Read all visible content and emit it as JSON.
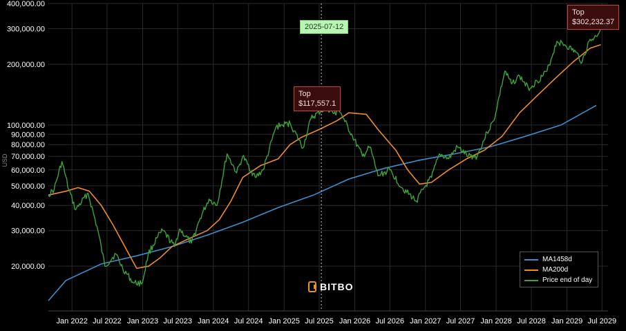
{
  "chart_data": {
    "type": "line",
    "ylabel": "USD",
    "y_scale": "log",
    "ylim": [
      12000,
      400000
    ],
    "xlim": [
      "2021-09-01",
      "2029-08-01"
    ],
    "grid": true,
    "legend_position": "bottom-right",
    "y_ticks": [
      "20,000.00",
      "30,000.00",
      "40,000.00",
      "50,000.00",
      "60,000.00",
      "70,000.00",
      "80,000.00",
      "90,000.00",
      "100,000.00",
      "200,000.00",
      "300,000.00",
      "400,000.00"
    ],
    "y_tick_values": [
      20000,
      30000,
      40000,
      50000,
      60000,
      70000,
      80000,
      90000,
      100000,
      200000,
      300000,
      400000
    ],
    "x_ticks": [
      "Jan 2022",
      "Jul 2022",
      "Jan 2023",
      "Jul 2023",
      "Jan 2024",
      "Jul 2024",
      "Jan 2025",
      "Jul 2025",
      "Jan 2026",
      "Jul 2026",
      "Jan 2027",
      "Jul 2027",
      "Jan 2028",
      "Jul 2028",
      "Jan 2029",
      "Jul 2029"
    ],
    "x_tick_dates": [
      "2022-01-01",
      "2022-07-01",
      "2023-01-01",
      "2023-07-01",
      "2024-01-01",
      "2024-07-01",
      "2025-01-01",
      "2025-07-01",
      "2026-01-01",
      "2026-07-01",
      "2027-01-01",
      "2027-07-01",
      "2028-01-01",
      "2028-07-01",
      "2029-01-01",
      "2029-07-01"
    ],
    "series": [
      {
        "name": "MA1458d",
        "color": "#3b8fd0",
        "points": [
          [
            "2021-09-01",
            13500
          ],
          [
            "2021-12-01",
            17000
          ],
          [
            "2022-06-01",
            20500
          ],
          [
            "2022-12-01",
            22500
          ],
          [
            "2023-06-01",
            25000
          ],
          [
            "2023-12-01",
            28500
          ],
          [
            "2024-06-01",
            33000
          ],
          [
            "2024-12-01",
            39000
          ],
          [
            "2025-06-01",
            45000
          ],
          [
            "2025-12-01",
            54000
          ],
          [
            "2026-06-01",
            61000
          ],
          [
            "2026-12-01",
            67000
          ],
          [
            "2027-06-01",
            72000
          ],
          [
            "2027-12-01",
            78000
          ],
          [
            "2028-06-01",
            88000
          ],
          [
            "2028-12-01",
            100000
          ],
          [
            "2029-06-01",
            125000
          ]
        ]
      },
      {
        "name": "MA200d",
        "color": "#f08c2a",
        "points": [
          [
            "2021-09-01",
            45000
          ],
          [
            "2021-12-01",
            47000
          ],
          [
            "2022-02-01",
            49000
          ],
          [
            "2022-04-01",
            47000
          ],
          [
            "2022-06-01",
            40000
          ],
          [
            "2022-08-01",
            32000
          ],
          [
            "2022-10-01",
            25000
          ],
          [
            "2022-12-01",
            19500
          ],
          [
            "2023-02-01",
            20000
          ],
          [
            "2023-04-01",
            22000
          ],
          [
            "2023-06-01",
            25000
          ],
          [
            "2023-09-01",
            27500
          ],
          [
            "2023-12-01",
            30000
          ],
          [
            "2024-02-01",
            34000
          ],
          [
            "2024-04-01",
            42000
          ],
          [
            "2024-06-01",
            55000
          ],
          [
            "2024-09-01",
            63000
          ],
          [
            "2024-12-01",
            68000
          ],
          [
            "2025-02-01",
            80000
          ],
          [
            "2025-04-01",
            87000
          ],
          [
            "2025-07-01",
            95000
          ],
          [
            "2025-10-01",
            105000
          ],
          [
            "2025-12-01",
            115000
          ],
          [
            "2026-03-01",
            113000
          ],
          [
            "2026-05-01",
            95000
          ],
          [
            "2026-08-01",
            75000
          ],
          [
            "2026-10-01",
            60000
          ],
          [
            "2026-12-01",
            51000
          ],
          [
            "2027-02-01",
            52000
          ],
          [
            "2027-05-01",
            60000
          ],
          [
            "2027-08-01",
            68000
          ],
          [
            "2027-11-01",
            75000
          ],
          [
            "2028-02-01",
            88000
          ],
          [
            "2028-05-01",
            115000
          ],
          [
            "2028-08-01",
            140000
          ],
          [
            "2028-11-01",
            170000
          ],
          [
            "2029-02-01",
            205000
          ],
          [
            "2029-05-01",
            240000
          ],
          [
            "2029-06-25",
            250000
          ]
        ]
      },
      {
        "name": "Price end of day",
        "color": "#3aa63a",
        "points": [
          [
            "2021-09-01",
            45000
          ],
          [
            "2021-10-01",
            48000
          ],
          [
            "2021-11-10",
            66000
          ],
          [
            "2021-12-15",
            48000
          ],
          [
            "2022-01-20",
            38000
          ],
          [
            "2022-03-25",
            46000
          ],
          [
            "2022-05-15",
            30000
          ],
          [
            "2022-06-20",
            20000
          ],
          [
            "2022-08-15",
            23000
          ],
          [
            "2022-09-20",
            19500
          ],
          [
            "2022-11-15",
            16500
          ],
          [
            "2022-12-30",
            16500
          ],
          [
            "2023-01-30",
            23000
          ],
          [
            "2023-03-20",
            28000
          ],
          [
            "2023-04-15",
            30000
          ],
          [
            "2023-06-15",
            25000
          ],
          [
            "2023-07-10",
            30500
          ],
          [
            "2023-09-10",
            26000
          ],
          [
            "2023-10-25",
            34500
          ],
          [
            "2023-12-10",
            43000
          ],
          [
            "2024-01-20",
            40000
          ],
          [
            "2024-03-12",
            72000
          ],
          [
            "2024-05-01",
            58000
          ],
          [
            "2024-06-01",
            70000
          ],
          [
            "2024-08-05",
            55000
          ],
          [
            "2024-09-15",
            60000
          ],
          [
            "2024-11-20",
            98000
          ],
          [
            "2024-12-20",
            100000
          ],
          [
            "2025-02-01",
            102000
          ],
          [
            "2025-04-08",
            77000
          ],
          [
            "2025-05-20",
            108000
          ],
          [
            "2025-07-12",
            117557.1
          ],
          [
            "2025-08-15",
            120000
          ],
          [
            "2025-09-25",
            112000
          ],
          [
            "2025-10-06",
            123000
          ],
          [
            "2025-11-10",
            104000
          ],
          [
            "2025-12-20",
            88000
          ],
          [
            "2026-02-10",
            70000
          ],
          [
            "2026-03-20",
            78000
          ],
          [
            "2026-05-01",
            56000
          ],
          [
            "2026-07-01",
            60000
          ],
          [
            "2026-09-01",
            49000
          ],
          [
            "2026-11-15",
            42000
          ],
          [
            "2026-12-20",
            48000
          ],
          [
            "2027-02-01",
            55000
          ],
          [
            "2027-03-15",
            72000
          ],
          [
            "2027-05-01",
            68000
          ],
          [
            "2027-06-15",
            78000
          ],
          [
            "2027-08-10",
            70000
          ],
          [
            "2027-09-25",
            70000
          ],
          [
            "2027-11-15",
            92000
          ],
          [
            "2027-12-20",
            105000
          ],
          [
            "2028-02-15",
            185000
          ],
          [
            "2028-03-20",
            160000
          ],
          [
            "2028-05-01",
            175000
          ],
          [
            "2028-06-15",
            152000
          ],
          [
            "2028-08-01",
            165000
          ],
          [
            "2028-09-20",
            185000
          ],
          [
            "2028-11-10",
            260000
          ],
          [
            "2028-12-20",
            250000
          ],
          [
            "2029-02-15",
            230000
          ],
          [
            "2029-03-20",
            205000
          ],
          [
            "2029-04-25",
            260000
          ],
          [
            "2029-06-01",
            275000
          ],
          [
            "2029-06-25",
            302232.37
          ]
        ]
      }
    ],
    "annotations": [
      {
        "kind": "callout",
        "title": "Top",
        "value": "$117,557.1",
        "date": "2025-07-12",
        "price": 117557.1
      },
      {
        "kind": "callout",
        "title": "Top",
        "value": "$302,232.37",
        "date": "2029-06-25",
        "price": 302232.37
      },
      {
        "kind": "date-marker",
        "label": "2025-07-12",
        "date": "2025-07-12"
      }
    ]
  },
  "legend": {
    "items": [
      {
        "label": "MA1458d",
        "color": "#3b8fd0"
      },
      {
        "label": "MA200d",
        "color": "#f08c2a"
      },
      {
        "label": "Price end of day",
        "color": "#3aa63a"
      }
    ]
  },
  "logo": {
    "text": "BITBO",
    "color": "#e8951d"
  },
  "callout_1": {
    "title": "Top",
    "value": "$117,557.1"
  },
  "callout_2": {
    "title": "Top",
    "value": "$302,232.37"
  },
  "date_marker": {
    "label": "2025-07-12"
  }
}
